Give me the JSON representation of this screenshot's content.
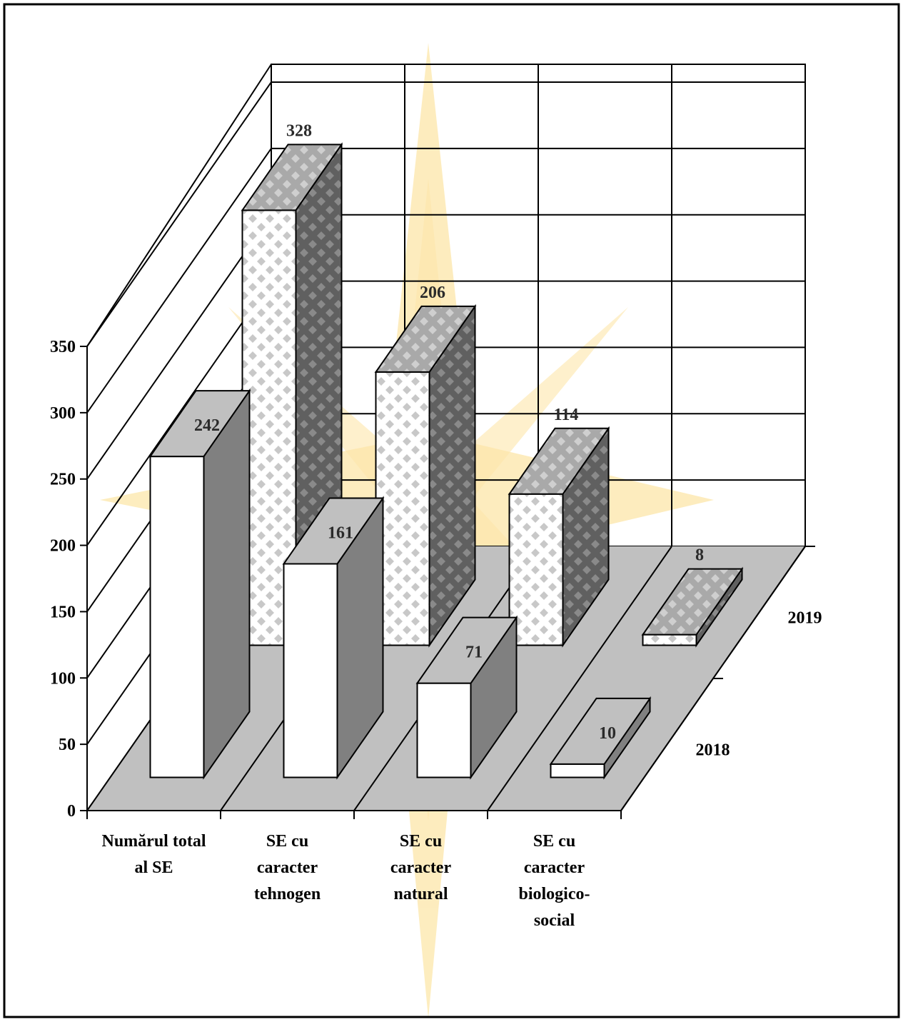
{
  "chart_data": {
    "type": "bar",
    "title": "",
    "xlabel": "",
    "ylabel": "",
    "ylim": [
      0,
      350
    ],
    "yticks": [
      0,
      50,
      100,
      150,
      200,
      250,
      300,
      350
    ],
    "grid": true,
    "legend": "none (series names printed along the depth axis)",
    "categories": [
      [
        "Numărul total",
        "al SE"
      ],
      [
        "SE cu",
        "caracter",
        "tehnogen"
      ],
      [
        "SE cu",
        "caracter",
        "natural"
      ],
      [
        "SE cu",
        "caracter",
        "biologico-",
        "social"
      ]
    ],
    "series": [
      {
        "name": "2018",
        "values": [
          242,
          161,
          71,
          10
        ]
      },
      {
        "name": "2019",
        "values": [
          328,
          206,
          114,
          8
        ]
      }
    ]
  },
  "colors": {
    "floor": "#c0c0c0",
    "front_2018": "#ffffff",
    "top_2018": "#c0c0c0",
    "side_2018": "#808080",
    "pattern_light": "#c6c6c6",
    "pattern_mid": "#8c8c8c",
    "pattern_dark": "#5a5a5a",
    "watermark_star": "#fde6a8",
    "watermark_leaf": "#f2f2f2"
  }
}
